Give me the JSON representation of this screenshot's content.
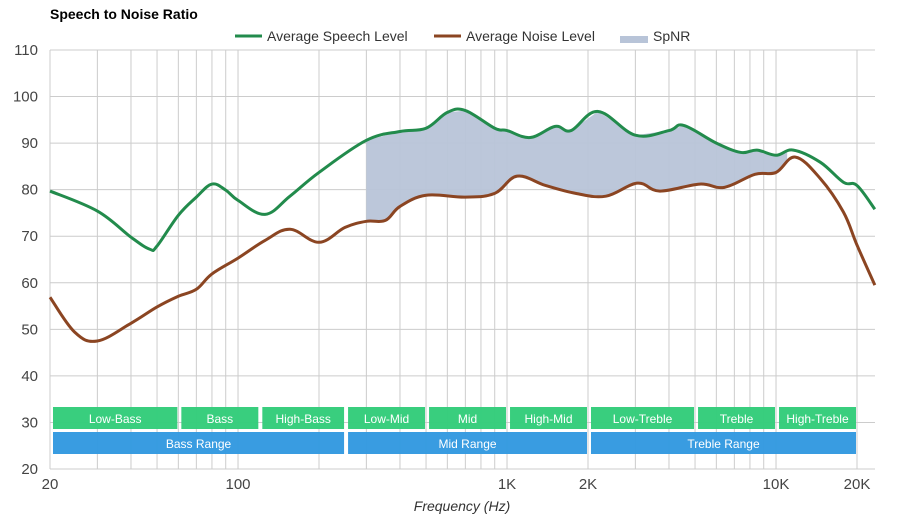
{
  "chart_data": {
    "type": "line",
    "title": "Speech to Noise Ratio",
    "xlabel": "Frequency (Hz)",
    "ylabel": "",
    "xscale": "log",
    "xlim": [
      20,
      23300
    ],
    "ylim": [
      20,
      110
    ],
    "grid": true,
    "legend_position": "top-center",
    "yticks": [
      20,
      30,
      40,
      50,
      60,
      70,
      80,
      90,
      100,
      110
    ],
    "xticks": [
      {
        "value": 20,
        "label": "20"
      },
      {
        "value": 100,
        "label": "100"
      },
      {
        "value": 1000,
        "label": "1K"
      },
      {
        "value": 2000,
        "label": "2K"
      },
      {
        "value": 10000,
        "label": "10K"
      },
      {
        "value": 20000,
        "label": "20K"
      }
    ],
    "minor_gridlines": [
      20,
      30,
      40,
      50,
      60,
      70,
      80,
      90,
      100,
      200,
      300,
      400,
      500,
      600,
      700,
      800,
      900,
      1000,
      2000,
      3000,
      4000,
      5000,
      6000,
      7000,
      8000,
      9000,
      10000,
      20000
    ],
    "legend": [
      {
        "name": "Average Speech Level",
        "color": "#228b4c",
        "kind": "line"
      },
      {
        "name": "Average Noise Level",
        "color": "#8b4522",
        "kind": "line"
      },
      {
        "name": "SpNR",
        "color": "#b8c4d8",
        "kind": "area"
      }
    ],
    "series": [
      {
        "name": "Average Speech Level",
        "color": "#228b4c",
        "x": [
          20,
          30,
          40,
          47,
          50,
          60,
          70,
          80,
          90,
          100,
          126,
          156,
          200,
          300,
          400,
          500,
          600,
          700,
          900,
          1000,
          1220,
          1510,
          1730,
          2180,
          3000,
          4000,
          4540,
          6000,
          7400,
          8500,
          10000,
          11600,
          14600,
          17800,
          20000,
          23300
        ],
        "y": [
          79.7,
          75.4,
          69.8,
          67.2,
          67.9,
          74.5,
          78.4,
          81.2,
          79.9,
          77.7,
          74.7,
          78.6,
          83.7,
          90.6,
          92.5,
          93.2,
          96.6,
          97.0,
          93.2,
          92.7,
          91.2,
          93.6,
          92.7,
          96.8,
          91.7,
          92.7,
          93.8,
          90.0,
          88.0,
          88.5,
          87.4,
          88.5,
          85.9,
          81.6,
          80.9,
          75.8
        ]
      },
      {
        "name": "Average Noise Level",
        "color": "#8b4522",
        "x": [
          20,
          24.7,
          30,
          40,
          50,
          60,
          70,
          80,
          100,
          126,
          156,
          200,
          250,
          300,
          353,
          400,
          500,
          700,
          900,
          1090,
          1390,
          1800,
          2330,
          3050,
          3700,
          5200,
          6430,
          8350,
          10000,
          11800,
          14600,
          17800,
          20000,
          23300
        ],
        "y": [
          56.9,
          49.4,
          47.5,
          51.3,
          54.8,
          57.1,
          58.6,
          61.9,
          65.3,
          69.1,
          71.5,
          68.7,
          71.9,
          73.2,
          73.4,
          76.4,
          78.8,
          78.4,
          79.2,
          82.9,
          80.9,
          79.2,
          78.6,
          81.4,
          79.7,
          81.2,
          80.5,
          83.3,
          83.7,
          87.0,
          82.4,
          75.2,
          68.1,
          59.5
        ]
      }
    ],
    "spnr_area": {
      "name": "SpNR",
      "x_range": [
        300,
        11000
      ],
      "between": [
        "Average Speech Level",
        "Average Noise Level"
      ]
    },
    "bands": [
      {
        "row": "detail",
        "label": "Low-Bass",
        "from": 20,
        "to": 60,
        "color": "#33cc7a"
      },
      {
        "row": "detail",
        "label": "Bass",
        "from": 60,
        "to": 120,
        "color": "#33cc7a"
      },
      {
        "row": "detail",
        "label": "High-Bass",
        "from": 120,
        "to": 250,
        "color": "#33cc7a"
      },
      {
        "row": "detail",
        "label": "Low-Mid",
        "from": 250,
        "to": 500,
        "color": "#33cc7a"
      },
      {
        "row": "detail",
        "label": "Mid",
        "from": 500,
        "to": 1000,
        "color": "#33cc7a"
      },
      {
        "row": "detail",
        "label": "High-Mid",
        "from": 1000,
        "to": 2000,
        "color": "#33cc7a"
      },
      {
        "row": "detail",
        "label": "Low-Treble",
        "from": 2000,
        "to": 5000,
        "color": "#33cc7a"
      },
      {
        "row": "detail",
        "label": "Treble",
        "from": 5000,
        "to": 10000,
        "color": "#33cc7a"
      },
      {
        "row": "detail",
        "label": "High-Treble",
        "from": 10000,
        "to": 20000,
        "color": "#33cc7a"
      },
      {
        "row": "range",
        "label": "Bass Range",
        "from": 20,
        "to": 250,
        "color": "#3399e0"
      },
      {
        "row": "range",
        "label": "Mid Range",
        "from": 250,
        "to": 2000,
        "color": "#3399e0"
      },
      {
        "row": "range",
        "label": "Treble Range",
        "from": 2000,
        "to": 20000,
        "color": "#3399e0"
      }
    ]
  }
}
